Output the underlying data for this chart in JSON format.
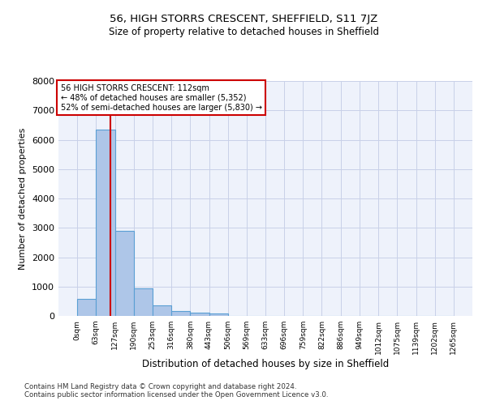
{
  "title": "56, HIGH STORRS CRESCENT, SHEFFIELD, S11 7JZ",
  "subtitle": "Size of property relative to detached houses in Sheffield",
  "xlabel": "Distribution of detached houses by size in Sheffield",
  "ylabel": "Number of detached properties",
  "annotation_line1": "56 HIGH STORRS CRESCENT: 112sqm",
  "annotation_line2": "← 48% of detached houses are smaller (5,352)",
  "annotation_line3": "52% of semi-detached houses are larger (5,830) →",
  "footnote1": "Contains HM Land Registry data © Crown copyright and database right 2024.",
  "footnote2": "Contains public sector information licensed under the Open Government Licence v3.0.",
  "bar_edges": [
    0,
    63,
    127,
    190,
    253,
    316,
    380,
    443,
    506,
    569,
    633,
    696,
    759,
    822,
    886,
    949,
    1012,
    1075,
    1139,
    1202,
    1265
  ],
  "bar_heights": [
    570,
    6350,
    2900,
    950,
    370,
    175,
    100,
    80,
    0,
    0,
    0,
    0,
    0,
    0,
    0,
    0,
    0,
    0,
    0,
    0
  ],
  "property_size": 112,
  "bar_color": "#aec6e8",
  "bar_edge_color": "#5a9fd4",
  "vline_color": "#cc0000",
  "background_color": "#eef2fb",
  "grid_color": "#c8d0e8",
  "ylim": [
    0,
    8000
  ],
  "yticks": [
    0,
    1000,
    2000,
    3000,
    4000,
    5000,
    6000,
    7000,
    8000
  ]
}
